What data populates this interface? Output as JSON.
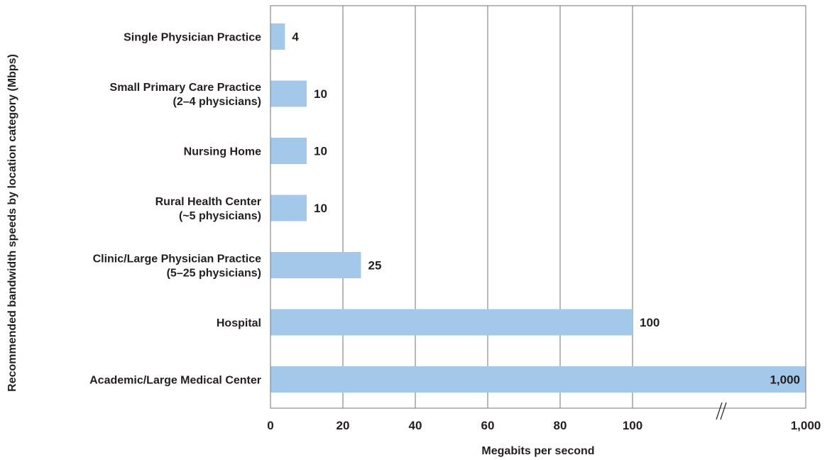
{
  "chart_data": {
    "type": "bar",
    "orientation": "horizontal",
    "title": "",
    "xlabel": "Megabits per second",
    "ylabel": "Recommended bandwidth speeds by location category (Mbps)",
    "categories": [
      [
        "Single Physician Practice"
      ],
      [
        "Small Primary Care Practice",
        "(2–4 physicians)"
      ],
      [
        "Nursing Home"
      ],
      [
        "Rural Health Center",
        "(~5 physicians)"
      ],
      [
        "Clinic/Large Physician Practice",
        "(5–25 physicians)"
      ],
      [
        "Hospital"
      ],
      [
        "Academic/Large Medical Center"
      ]
    ],
    "values": [
      4,
      10,
      10,
      10,
      25,
      100,
      1000
    ],
    "value_labels": [
      "4",
      "10",
      "10",
      "10",
      "25",
      "100",
      "1,000"
    ],
    "x_ticks": [
      0,
      20,
      40,
      60,
      80,
      100,
      1000
    ],
    "x_tick_labels": [
      "0",
      "20",
      "40",
      "60",
      "80",
      "100",
      "1,000"
    ],
    "axis_break": "between 100 and 1,000",
    "xlim": [
      0,
      1000
    ],
    "grid": true,
    "colors": {
      "bar": "#a3c8ea",
      "grid": "#8a8a8a",
      "text": "#231f20"
    }
  }
}
